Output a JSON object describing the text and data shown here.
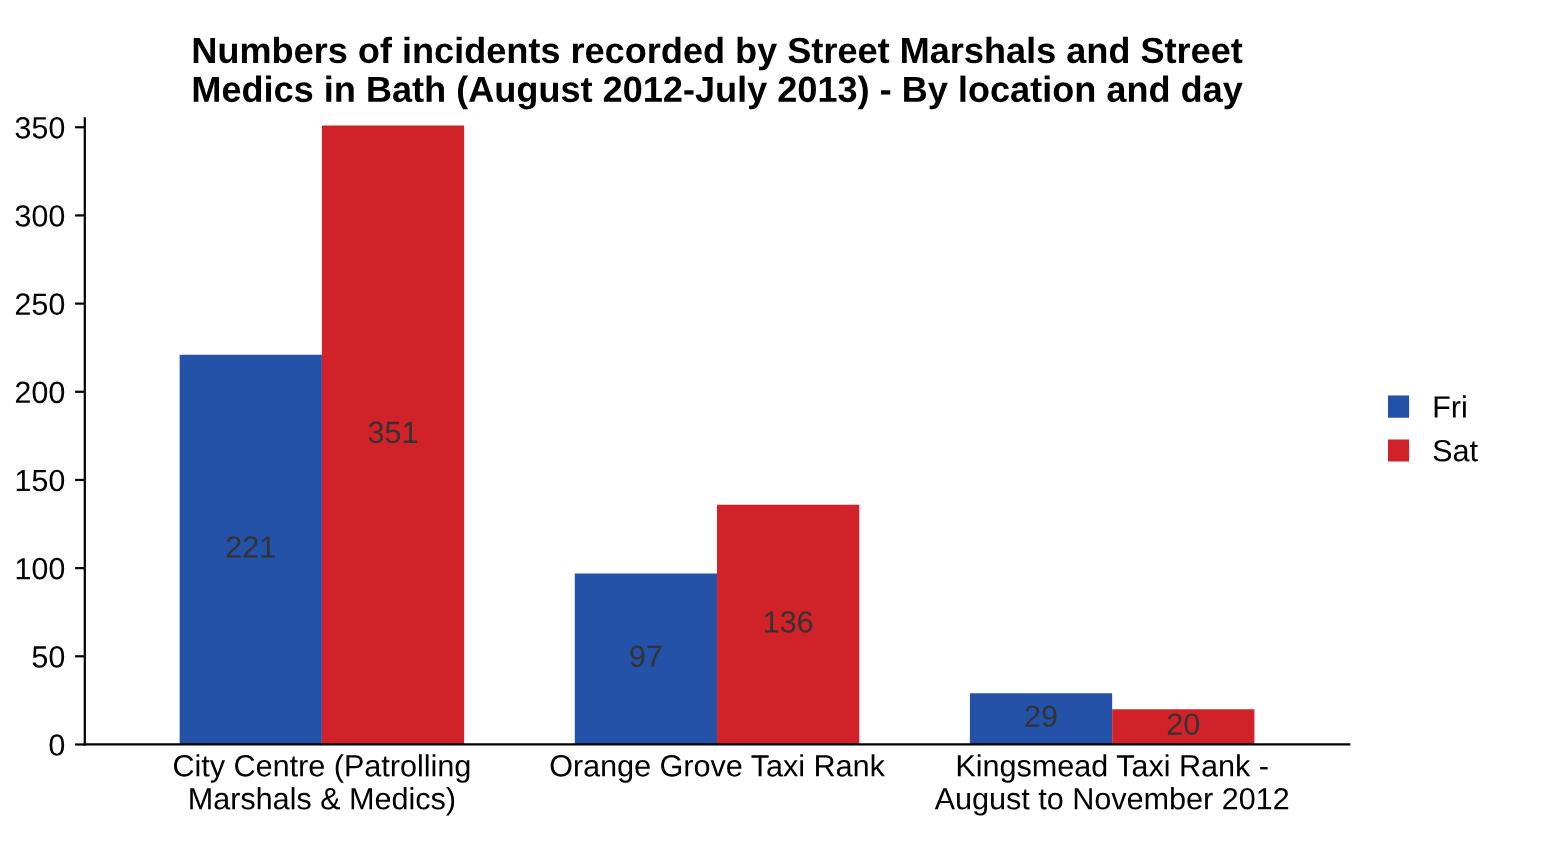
{
  "chart_data": {
    "type": "bar",
    "title": "Numbers of incidents recorded by Street Marshals and Street\nMedics in Bath (August 2012-July 2013) - By location and day",
    "categories": [
      "City Centre (Patrolling\nMarshals & Medics)",
      "Orange Grove Taxi Rank",
      "Kingsmead Taxi Rank -\nAugust to November 2012"
    ],
    "series": [
      {
        "name": "Fri",
        "color": "#2352a8",
        "values": [
          221,
          97,
          29
        ]
      },
      {
        "name": "Sat",
        "color": "#d02228",
        "values": [
          351,
          136,
          20
        ]
      }
    ],
    "ylim": [
      0,
      355
    ],
    "yticks": [
      0,
      50,
      100,
      150,
      200,
      250,
      300,
      350
    ],
    "grid": false,
    "legend": "right",
    "data_labels": true
  }
}
